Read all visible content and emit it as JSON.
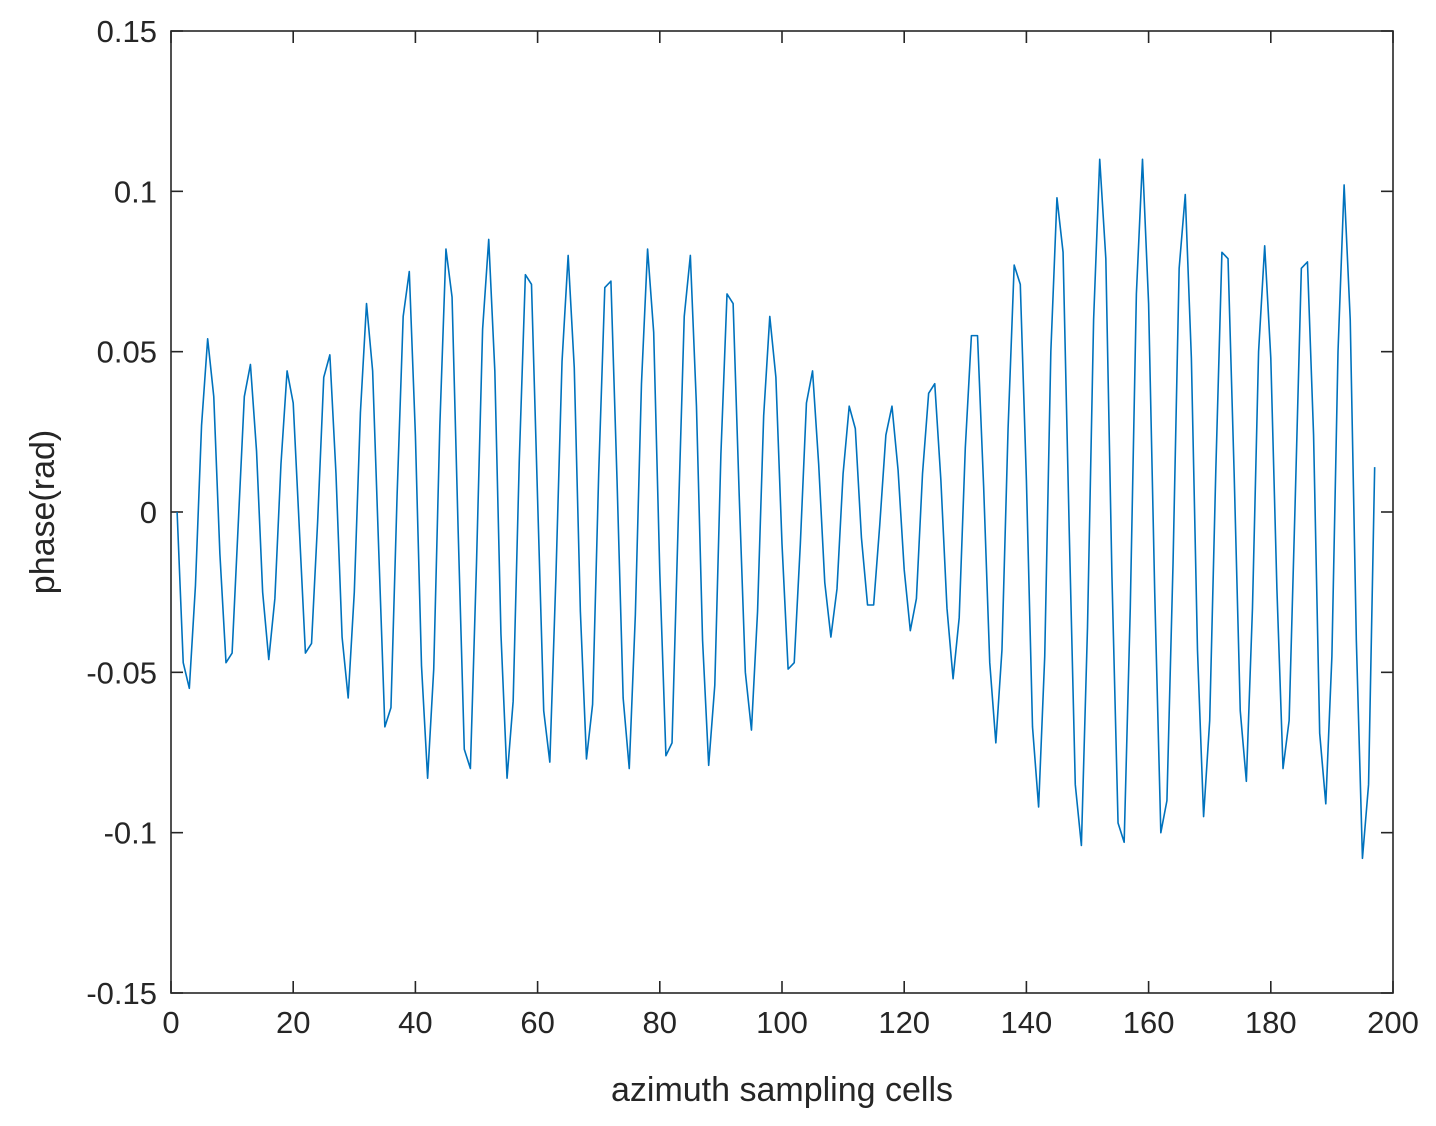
{
  "chart_data": {
    "type": "line",
    "xlabel": "azimuth sampling cells",
    "ylabel": "phase(rad)",
    "xlim": [
      0,
      200
    ],
    "ylim": [
      -0.15,
      0.15
    ],
    "x_ticks": [
      "0",
      "20",
      "40",
      "60",
      "80",
      "100",
      "120",
      "140",
      "160",
      "180",
      "200"
    ],
    "y_ticks": [
      "-0.15",
      "-0.1",
      "-0.05",
      "0",
      "0.05",
      "0.1",
      "0.15"
    ],
    "grid": false,
    "line_color": "#0072BD",
    "series": [
      {
        "x_start": 1,
        "x_step": 1,
        "values": [
          0,
          -0.047,
          -0.055,
          -0.023,
          0.027,
          0.054,
          0.036,
          -0.013,
          -0.047,
          -0.044,
          -0.004,
          0.036,
          0.046,
          0.019,
          -0.025,
          -0.046,
          -0.027,
          0.015,
          0.044,
          0.034,
          -0.005,
          -0.044,
          -0.041,
          -0.003,
          0.042,
          0.049,
          0.012,
          -0.039,
          -0.058,
          -0.025,
          0.031,
          0.065,
          0.044,
          -0.012,
          -0.067,
          -0.061,
          0.005,
          0.061,
          0.075,
          0.024,
          -0.048,
          -0.083,
          -0.049,
          0.027,
          0.082,
          0.067,
          -0.006,
          -0.074,
          -0.08,
          -0.016,
          0.057,
          0.085,
          0.044,
          -0.038,
          -0.083,
          -0.059,
          0.016,
          0.074,
          0.071,
          0.004,
          -0.062,
          -0.078,
          -0.02,
          0.047,
          0.08,
          0.045,
          -0.031,
          -0.077,
          -0.06,
          0.012,
          0.07,
          0.072,
          0.01,
          -0.058,
          -0.08,
          -0.032,
          0.04,
          0.082,
          0.056,
          -0.019,
          -0.076,
          -0.072,
          -0.004,
          0.061,
          0.08,
          0.033,
          -0.04,
          -0.079,
          -0.054,
          0.018,
          0.068,
          0.065,
          0.005,
          -0.05,
          -0.068,
          -0.031,
          0.03,
          0.061,
          0.042,
          -0.01,
          -0.049,
          -0.047,
          -0.01,
          0.034,
          0.044,
          0.015,
          -0.022,
          -0.039,
          -0.024,
          0.012,
          0.033,
          0.026,
          -0.008,
          -0.029,
          -0.029,
          -0.004,
          0.024,
          0.033,
          0.013,
          -0.018,
          -0.037,
          -0.027,
          0.012,
          0.037,
          0.04,
          0.01,
          -0.03,
          -0.052,
          -0.033,
          0.02,
          0.055,
          0.055,
          0.008,
          -0.047,
          -0.072,
          -0.043,
          0.026,
          0.077,
          0.071,
          0.01,
          -0.067,
          -0.092,
          -0.045,
          0.05,
          0.098,
          0.081,
          -0.005,
          -0.085,
          -0.104,
          -0.036,
          0.06,
          0.11,
          0.079,
          -0.02,
          -0.097,
          -0.103,
          -0.03,
          0.068,
          0.11,
          0.065,
          -0.025,
          -0.1,
          -0.09,
          -0.016,
          0.076,
          0.099,
          0.048,
          -0.043,
          -0.095,
          -0.065,
          0.013,
          0.081,
          0.079,
          0.012,
          -0.062,
          -0.084,
          -0.03,
          0.05,
          0.083,
          0.048,
          -0.024,
          -0.08,
          -0.065,
          0.004,
          0.076,
          0.078,
          0.024,
          -0.069,
          -0.091,
          -0.045,
          0.05,
          0.102,
          0.06,
          -0.04,
          -0.108,
          -0.085,
          0.014
        ]
      }
    ]
  }
}
